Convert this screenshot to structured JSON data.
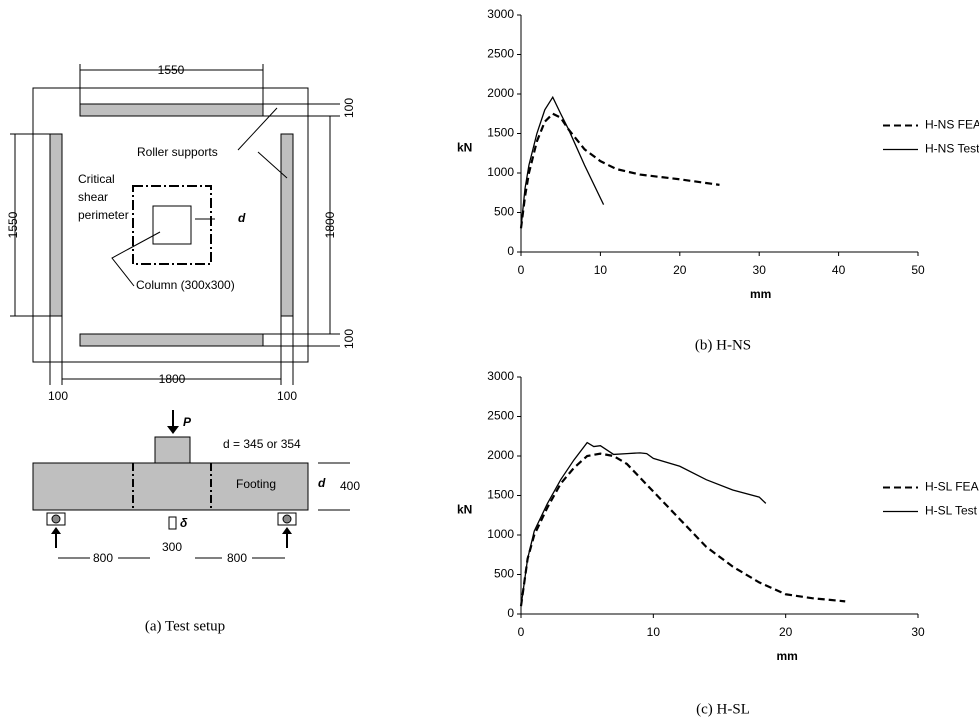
{
  "diagram": {
    "top_dim": "1550",
    "left_dim": "1550",
    "right_dim": "1800",
    "bottom_dim": "1800",
    "offset_dims": [
      "100",
      "100",
      "100",
      "100"
    ],
    "roller": "Roller supports",
    "critical": [
      "Critical",
      "shear",
      "perimeter"
    ],
    "d_plan": "d",
    "column": "Column (300x300)",
    "load": "P",
    "depth_note": "d = 345 or 354",
    "footing": "Footing",
    "d_side": "d",
    "height": "400",
    "delta": "δ",
    "spans": [
      "800",
      "300",
      "800"
    ],
    "caption": "(a)  Test setup"
  },
  "chart_data": [
    {
      "type": "line",
      "caption": "(b)  H-NS",
      "y_label": "kN",
      "x_label": "mm",
      "xlim": [
        0,
        50
      ],
      "xticks": [
        0,
        10,
        20,
        30,
        40,
        50
      ],
      "ylim": [
        0,
        3000
      ],
      "yticks": [
        0,
        500,
        1000,
        1500,
        2000,
        2500,
        3000
      ],
      "grid": false,
      "legend": "right",
      "series": [
        {
          "name": "H-NS FEA",
          "color": "#000000",
          "line_style": "dashed",
          "x": [
            0,
            0.5,
            1,
            2,
            3,
            4,
            5,
            6,
            8,
            10,
            12,
            15,
            20,
            25
          ],
          "values": [
            300,
            700,
            1000,
            1400,
            1650,
            1750,
            1700,
            1550,
            1300,
            1150,
            1050,
            980,
            920,
            850
          ]
        },
        {
          "name": "H-NS Test",
          "color": "#000000",
          "line_style": "solid",
          "x": [
            0,
            0.5,
            1,
            2,
            3,
            4,
            5,
            6,
            8,
            10.4
          ],
          "values": [
            300,
            800,
            1100,
            1500,
            1800,
            1960,
            1750,
            1550,
            1100,
            600
          ]
        }
      ]
    },
    {
      "type": "line",
      "caption": "(c)  H-SL",
      "y_label": "kN",
      "x_label": "mm",
      "xlim": [
        0,
        30
      ],
      "xticks": [
        0,
        10,
        20,
        30
      ],
      "ylim": [
        0,
        3000
      ],
      "yticks": [
        0,
        500,
        1000,
        1500,
        2000,
        2500,
        3000
      ],
      "grid": false,
      "legend": "right",
      "series": [
        {
          "name": "H-SL FEA",
          "color": "#000000",
          "line_style": "dashed",
          "x": [
            0,
            0.5,
            1,
            2,
            3,
            4,
            5,
            6,
            7,
            8,
            10,
            12,
            14,
            16,
            18,
            20,
            22,
            24.5
          ],
          "values": [
            100,
            700,
            1000,
            1350,
            1650,
            1850,
            2000,
            2030,
            2000,
            1900,
            1550,
            1200,
            850,
            600,
            400,
            250,
            200,
            160
          ]
        },
        {
          "name": "H-SL Test",
          "color": "#000000",
          "line_style": "solid",
          "x": [
            0,
            0.5,
            1,
            2,
            3,
            4,
            5,
            5.5,
            6,
            7,
            8,
            9,
            9.5,
            10,
            12,
            14,
            16,
            18,
            18.5
          ],
          "values": [
            100,
            700,
            1050,
            1400,
            1700,
            1950,
            2170,
            2120,
            2130,
            2020,
            2030,
            2040,
            2030,
            1970,
            1870,
            1700,
            1570,
            1480,
            1400
          ]
        }
      ]
    }
  ]
}
